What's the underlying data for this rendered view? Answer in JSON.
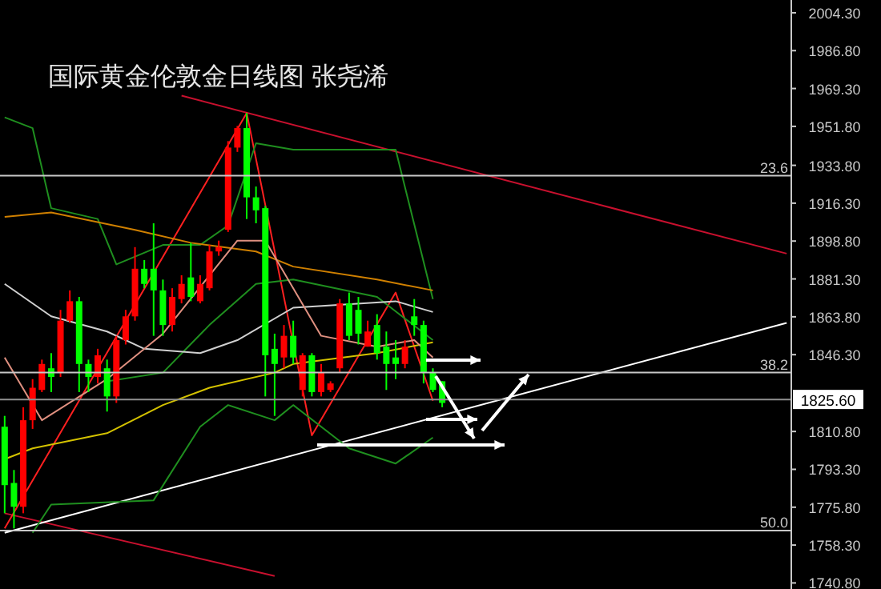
{
  "chart_data": {
    "type": "candlestick",
    "title": "国际黄金伦敦金日线图 张尧浠",
    "categories": [
      null,
      null,
      null,
      null,
      null,
      null,
      null,
      null,
      null,
      null,
      null,
      null,
      null,
      null,
      null,
      null,
      null,
      null,
      null,
      null,
      null,
      null,
      null,
      null,
      null,
      null,
      null,
      null,
      null,
      null,
      null,
      null,
      null,
      null,
      null,
      null,
      null,
      null,
      null,
      null,
      null,
      null,
      null,
      null,
      null,
      null,
      null,
      null,
      null,
      null,
      null,
      null,
      null,
      null,
      null,
      null,
      null,
      null,
      null,
      null,
      null,
      null,
      null,
      null,
      null,
      null,
      null,
      null,
      null,
      null,
      null,
      null,
      null,
      null,
      null,
      null,
      null,
      null,
      null,
      null,
      null,
      null,
      null,
      null,
      null
    ],
    "ohlc": [
      [
        1813,
        1818,
        1773,
        1786
      ],
      [
        1787,
        1793,
        1766,
        1776
      ],
      [
        1776,
        1822,
        1773,
        1816
      ],
      [
        1816,
        1835,
        1812,
        1831
      ],
      [
        1830,
        1844,
        1829,
        1842
      ],
      [
        1840,
        1847,
        1829,
        1836
      ],
      [
        1838,
        1867,
        1836,
        1862
      ],
      [
        1862,
        1876,
        1861,
        1871
      ],
      [
        1871,
        1873,
        1829,
        1842
      ],
      [
        1842,
        1844,
        1829,
        1836
      ],
      [
        1836,
        1849,
        1833,
        1846
      ],
      [
        1840,
        1844,
        1820,
        1827
      ],
      [
        1827,
        1855,
        1824,
        1853
      ],
      [
        1853,
        1867,
        1851,
        1864
      ],
      [
        1864,
        1896,
        1862,
        1886
      ],
      [
        1886,
        1890,
        1877,
        1879
      ],
      [
        1886,
        1907,
        1855,
        1876
      ],
      [
        1876,
        1881,
        1855,
        1860
      ],
      [
        1860,
        1877,
        1857,
        1873
      ],
      [
        1872,
        1883,
        1870,
        1879
      ],
      [
        1882,
        1898,
        1871,
        1873
      ],
      [
        1871,
        1883,
        1870,
        1879
      ],
      [
        1877,
        1897,
        1876,
        1894
      ],
      [
        1894,
        1899,
        1892,
        1896
      ],
      [
        1904,
        1945,
        1903,
        1942
      ],
      [
        1942,
        1952,
        1940,
        1951
      ],
      [
        1951,
        1958,
        1909,
        1919
      ],
      [
        1919,
        1924,
        1907,
        1913
      ],
      [
        1914,
        1915,
        1827,
        1846
      ],
      [
        1849,
        1856,
        1818,
        1842
      ],
      [
        1845,
        1860,
        1840,
        1855
      ],
      [
        1855,
        1862,
        1842,
        1845
      ],
      [
        1830,
        1847,
        1827,
        1846
      ],
      [
        1846,
        1847,
        1827,
        1829
      ],
      [
        1829,
        1842,
        1827,
        1838
      ],
      [
        1830,
        1834,
        1829,
        1833
      ],
      [
        1840,
        1872,
        1838,
        1870
      ],
      [
        1870,
        1875,
        1853,
        1855
      ],
      [
        1867,
        1873,
        1851,
        1856
      ],
      [
        1850,
        1862,
        1850,
        1857
      ],
      [
        1860,
        1865,
        1844,
        1847
      ],
      [
        1850,
        1857,
        1830,
        1842
      ],
      [
        1845,
        1853,
        1835,
        1842
      ],
      [
        1842,
        1853,
        1840,
        1850
      ],
      [
        1864,
        1872,
        1855,
        1860
      ],
      [
        1860,
        1862,
        1833,
        1838
      ],
      [
        1838,
        1840,
        1829,
        1830
      ],
      [
        1834,
        1834,
        1822,
        1824
      ],
      null,
      null,
      null,
      null,
      null,
      null,
      null,
      null,
      null,
      null,
      null,
      null,
      null,
      null,
      null,
      null,
      null,
      null,
      null,
      null,
      null,
      null,
      null,
      null,
      null,
      null,
      null,
      null,
      null,
      null,
      null,
      null,
      null,
      null,
      null,
      null,
      null
    ],
    "colors": [
      "#00ff00",
      "#00ff00",
      "#ff0000",
      "#ff0000",
      "#ff0000",
      "#00ff00",
      "#ff0000",
      "#ff0000",
      "#00ff00",
      "#00ff00",
      "#ff0000",
      "#00ff00",
      "#ff0000",
      "#ff0000",
      "#ff0000",
      "#00ff00",
      "#00ff00",
      "#00ff00",
      "#ff0000",
      "#ff0000",
      "#00ff00",
      "#ff0000",
      "#ff0000",
      "#ff0000",
      "#ff0000",
      "#ff0000",
      "#00ff00",
      "#00ff00",
      "#00ff00",
      "#00ff00",
      "#ff0000",
      "#00ff00",
      "#ff0000",
      "#00ff00",
      "#ff0000",
      "#ff0000",
      "#ff0000",
      "#00ff00",
      "#00ff00",
      "#ff0000",
      "#00ff00",
      "#00ff00",
      "#00ff00",
      "#ff0000",
      "#00ff00",
      "#00ff00",
      "#00ff00",
      "#00ff00",
      null,
      null,
      null,
      null,
      null,
      null,
      null,
      null,
      null,
      null,
      null,
      null,
      null,
      null,
      null,
      null,
      null,
      null,
      null,
      null,
      null,
      null,
      null,
      null,
      null,
      null,
      null,
      null,
      null,
      null,
      null,
      null,
      null,
      null,
      null,
      null,
      null
    ],
    "ylim": [
      1738,
      2010.2
    ],
    "yticks": [
      {
        "value": 2004.3,
        "label": "2004.30"
      },
      {
        "value": 1986.8,
        "label": "1986.80"
      },
      {
        "value": 1969.3,
        "label": "1969.30"
      },
      {
        "value": 1951.8,
        "label": "1951.80"
      },
      {
        "value": 1933.8,
        "label": "1933.80"
      },
      {
        "value": 1916.3,
        "label": "1916.30"
      },
      {
        "value": 1898.8,
        "label": "1898.80"
      },
      {
        "value": 1881.3,
        "label": "1881.30"
      },
      {
        "value": 1863.8,
        "label": "1863.80"
      },
      {
        "value": 1846.3,
        "label": "1846.30"
      },
      {
        "value": 1810.8,
        "label": "1810.80"
      },
      {
        "value": 1793.3,
        "label": "1793.30"
      },
      {
        "value": 1775.8,
        "label": "1775.80"
      },
      {
        "value": 1758.3,
        "label": "1758.30"
      },
      {
        "value": 1740.8,
        "label": "1740.80"
      }
    ],
    "tick_labels": "y",
    "ref_lines": [
      {
        "axis": "y",
        "value": 1929,
        "color": "#c8c8c8"
      },
      {
        "axis": "y",
        "value": 1838,
        "color": "#c8c8c8"
      },
      {
        "axis": "y",
        "value": 1765,
        "color": "#c8c8c8"
      },
      {
        "axis": "y",
        "value": 1825.6,
        "label": "1825.60",
        "color": "#909090"
      }
    ],
    "annotations": [
      "23.6",
      "38.2",
      "50.0"
    ],
    "series": [
      {
        "type": "line",
        "color": "#c8102e",
        "values": [
          null,
          null,
          null,
          null,
          null,
          null,
          null,
          null,
          null,
          null,
          null,
          null,
          null,
          null,
          null,
          null,
          null,
          null,
          null,
          1966,
          null,
          null,
          null,
          null,
          null,
          null,
          null,
          null,
          null,
          null,
          null,
          null,
          null,
          null,
          null,
          null,
          null,
          null,
          null,
          null,
          null,
          null,
          null,
          null,
          null,
          null,
          null,
          null,
          null,
          null,
          null,
          null,
          null,
          null,
          null,
          null,
          null,
          null,
          null,
          null,
          null,
          null,
          null,
          null,
          null,
          null,
          null,
          null,
          null,
          null,
          null,
          null,
          null,
          null,
          null,
          null,
          null,
          null,
          null,
          null,
          null,
          null,
          null,
          null,
          1893
        ]
      },
      {
        "type": "line",
        "color": "#c8102e",
        "values": [
          1773,
          null,
          null,
          null,
          null,
          null,
          null,
          null,
          null,
          null,
          null,
          null,
          null,
          null,
          null,
          null,
          null,
          null,
          null,
          null,
          null,
          null,
          null,
          null,
          null,
          null,
          null,
          null,
          null,
          1744,
          null,
          null,
          null,
          null,
          null,
          null,
          null,
          null,
          null,
          null,
          null,
          null,
          null,
          null,
          null,
          null,
          null,
          null,
          null,
          null,
          null,
          null,
          null,
          null,
          null,
          null,
          null,
          null,
          null,
          null,
          null,
          null,
          null,
          null,
          null,
          null,
          null,
          null,
          null,
          null,
          null,
          null,
          null,
          null,
          null,
          null,
          null,
          null,
          null,
          null,
          null,
          null,
          null,
          null,
          null
        ]
      },
      {
        "type": "line",
        "color": "#ffffff",
        "values": [
          1764,
          null,
          null,
          null,
          null,
          null,
          null,
          null,
          null,
          null,
          null,
          null,
          null,
          null,
          null,
          null,
          null,
          null,
          null,
          null,
          null,
          null,
          null,
          null,
          null,
          null,
          null,
          null,
          null,
          null,
          null,
          null,
          null,
          null,
          null,
          null,
          null,
          null,
          null,
          null,
          null,
          null,
          null,
          null,
          null,
          null,
          null,
          null,
          null,
          null,
          null,
          null,
          null,
          null,
          null,
          null,
          null,
          null,
          null,
          null,
          null,
          null,
          null,
          null,
          null,
          null,
          null,
          null,
          null,
          null,
          null,
          null,
          null,
          null,
          null,
          null,
          null,
          null,
          null,
          null,
          null,
          null,
          null,
          null,
          1861
        ]
      },
      {
        "type": "line",
        "color": "#ff2020",
        "values": [
          1766,
          null,
          null,
          null,
          null,
          null,
          null,
          null,
          null,
          null,
          null,
          null,
          null,
          null,
          null,
          null,
          null,
          null,
          null,
          null,
          null,
          null,
          null,
          null,
          null,
          null,
          1958,
          null,
          null,
          null,
          null,
          null,
          null,
          1809,
          null,
          null,
          null,
          null,
          null,
          null,
          null,
          null,
          1875,
          null,
          null,
          null,
          1825,
          null,
          null,
          null,
          null,
          null,
          null,
          null,
          null,
          null,
          null,
          null,
          null,
          null,
          null,
          null,
          null,
          null,
          null,
          null,
          null,
          null,
          null,
          null,
          null,
          null,
          null,
          null,
          null,
          null,
          null,
          null,
          null,
          null,
          null,
          null,
          null,
          null,
          null
        ]
      },
      {
        "type": "line",
        "color": "#1f8f1f",
        "values": [
          1956,
          null,
          null,
          1951,
          null,
          1914,
          null,
          null,
          null,
          null,
          1909,
          null,
          1888,
          null,
          null,
          null,
          null,
          1897,
          null,
          null,
          null,
          1897,
          null,
          null,
          1906,
          null,
          null,
          1944,
          null,
          null,
          null,
          1941,
          null,
          null,
          null,
          null,
          null,
          null,
          null,
          null,
          null,
          null,
          1941,
          null,
          null,
          null,
          1872,
          null,
          null,
          null,
          null,
          null,
          null,
          null,
          null,
          null,
          null,
          null,
          null,
          null,
          null,
          null,
          null,
          null,
          null,
          null,
          null,
          null,
          null,
          null,
          null,
          null,
          null,
          null,
          null,
          null,
          null,
          null,
          null,
          null,
          null,
          null,
          null,
          null,
          null
        ]
      },
      {
        "type": "line",
        "color": "#1f8f1f",
        "values": [
          null,
          null,
          null,
          null,
          null,
          null,
          null,
          null,
          null,
          null,
          null,
          1834,
          null,
          null,
          null,
          null,
          null,
          1838,
          null,
          null,
          null,
          null,
          1860,
          null,
          null,
          null,
          null,
          1879,
          null,
          null,
          null,
          1881,
          null,
          null,
          null,
          null,
          null,
          null,
          null,
          null,
          1873,
          null,
          null,
          null,
          null,
          null,
          1853,
          null,
          null,
          null,
          null,
          null,
          null,
          null,
          null,
          null,
          null,
          null,
          null,
          null,
          null,
          null,
          null,
          null,
          null,
          null,
          null,
          null,
          null,
          null,
          null,
          null,
          null,
          null,
          null,
          null,
          null,
          null,
          null,
          null,
          null,
          null,
          null,
          null,
          null
        ]
      },
      {
        "type": "line",
        "color": "#1f8f1f",
        "values": [
          null,
          null,
          null,
          1764,
          null,
          1777,
          null,
          null,
          null,
          null,
          null,
          null,
          null,
          null,
          null,
          null,
          1779,
          null,
          null,
          null,
          null,
          1813,
          null,
          null,
          1823,
          null,
          null,
          null,
          null,
          1816,
          null,
          1823,
          null,
          null,
          null,
          null,
          null,
          1803,
          null,
          null,
          null,
          null,
          1796,
          null,
          null,
          null,
          1808,
          null,
          null,
          null,
          null,
          null,
          null,
          null,
          null,
          null,
          null,
          null,
          null,
          null,
          null,
          null,
          null,
          null,
          null,
          null,
          null,
          null,
          null,
          null,
          null,
          null,
          null,
          null,
          null,
          null,
          null,
          null,
          null,
          null,
          null,
          null,
          null,
          null,
          null
        ]
      },
      {
        "type": "line",
        "color": "#d4c200",
        "values": [
          1798,
          null,
          null,
          1803,
          null,
          null,
          null,
          null,
          null,
          null,
          null,
          1810,
          null,
          null,
          null,
          null,
          null,
          1823,
          null,
          null,
          null,
          null,
          1831,
          null,
          null,
          null,
          null,
          null,
          null,
          1838,
          null,
          1842,
          null,
          null,
          null,
          null,
          null,
          null,
          null,
          null,
          1847,
          null,
          null,
          null,
          null,
          null,
          1852,
          null,
          null,
          null,
          null,
          null,
          null,
          null,
          null,
          null,
          null,
          null,
          null,
          null,
          null,
          null,
          null,
          null,
          null,
          null,
          null,
          null,
          null,
          null,
          null,
          null,
          null,
          null,
          null,
          null,
          null,
          null,
          null,
          null,
          null,
          null,
          null,
          null,
          null
        ]
      },
      {
        "type": "line",
        "color": "#d08000",
        "values": [
          1910,
          null,
          null,
          null,
          null,
          1912,
          null,
          null,
          null,
          null,
          null,
          null,
          null,
          null,
          1904,
          null,
          null,
          null,
          null,
          null,
          1898,
          null,
          null,
          null,
          null,
          null,
          null,
          1894,
          null,
          null,
          null,
          1887,
          null,
          null,
          null,
          null,
          null,
          null,
          null,
          null,
          1881,
          null,
          null,
          null,
          null,
          null,
          1876,
          null,
          null,
          null,
          null,
          null,
          null,
          null,
          null,
          null,
          null,
          null,
          null,
          null,
          null,
          null,
          null,
          null,
          null,
          null,
          null,
          null,
          null,
          null,
          null,
          null,
          null,
          null,
          null,
          null,
          null,
          null,
          null,
          null,
          null,
          null,
          null,
          null,
          null
        ]
      },
      {
        "type": "line",
        "color": "#d0d0d0",
        "values": [
          1879,
          null,
          null,
          null,
          null,
          1864,
          null,
          null,
          null,
          null,
          null,
          1857,
          null,
          null,
          null,
          1849,
          null,
          null,
          null,
          null,
          null,
          1847,
          null,
          null,
          null,
          1853,
          null,
          null,
          null,
          null,
          null,
          1868,
          null,
          null,
          null,
          null,
          null,
          null,
          null,
          null,
          null,
          null,
          1871,
          null,
          null,
          null,
          1866,
          null,
          null,
          null,
          null,
          null,
          null,
          null,
          null,
          null,
          null,
          null,
          null,
          null,
          null,
          null,
          null,
          null,
          null,
          null,
          null,
          null,
          null,
          null,
          null,
          null,
          null,
          null,
          null,
          null,
          null,
          null,
          null,
          null,
          null,
          null,
          null,
          null,
          null
        ]
      },
      {
        "type": "line",
        "color": "#e09080",
        "values": [
          1845,
          null,
          null,
          null,
          1816,
          null,
          null,
          null,
          null,
          null,
          null,
          1835,
          null,
          null,
          null,
          null,
          null,
          1856,
          null,
          null,
          null,
          null,
          null,
          null,
          null,
          1899,
          null,
          null,
          1899,
          null,
          null,
          null,
          null,
          null,
          1855,
          null,
          null,
          null,
          null,
          null,
          1850,
          null,
          null,
          null,
          1853,
          null,
          1845,
          null,
          null,
          null,
          null,
          null,
          null,
          null,
          null,
          null,
          null,
          null,
          null,
          null,
          null,
          null,
          null,
          null,
          null,
          null,
          null,
          null,
          null,
          null,
          null,
          null,
          null,
          null,
          null,
          null,
          null,
          null,
          null,
          null,
          null,
          null,
          null,
          null,
          null
        ]
      }
    ]
  }
}
